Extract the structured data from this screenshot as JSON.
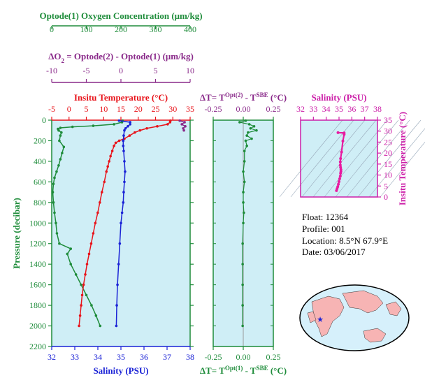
{
  "colors": {
    "oxygen": "#1e8c3a",
    "delta_o2": "#8a2a8a",
    "temperature": "#e8131a",
    "salinity": "#1a22d6",
    "delta_t": "#1e8c3a",
    "ts_axis": "#cc1fa8",
    "panel_fill": "#cfeef6",
    "ts_line": "#e81aa0"
  },
  "info": {
    "float": "Float:  12364",
    "profile": "Profile:  001",
    "location": "Location:  8.5°N  67.9°E",
    "date": "Date:  03/06/2017"
  },
  "chart_data": [
    {
      "type": "line",
      "panel": "profile",
      "ylabel": "Pressure (decibar)",
      "ylim": [
        2200,
        0
      ],
      "yticks": [
        0,
        200,
        400,
        600,
        800,
        1000,
        1200,
        1400,
        1600,
        1800,
        2000,
        2200
      ],
      "axes": {
        "oxygen": {
          "label": "Optode(1) Oxygen Concentration (μm/kg)",
          "range": [
            0,
            400
          ],
          "ticks": [
            0,
            100,
            200,
            300,
            400
          ]
        },
        "delta_o2": {
          "label_pre": "ΔO",
          "label_sub": "2",
          "label_post": " = Optode(2) - Optode(1)   (μm/kg)",
          "range": [
            -10,
            10
          ],
          "ticks": [
            -10,
            -5,
            0,
            5,
            10
          ]
        },
        "temperature": {
          "label": "Insitu Temperature (°C)",
          "range": [
            -5,
            35
          ],
          "ticks": [
            -5,
            0,
            5,
            10,
            15,
            20,
            25,
            30,
            35
          ]
        },
        "salinity": {
          "label": "Salinity (PSU)",
          "range": [
            32,
            38
          ],
          "ticks": [
            32,
            33,
            34,
            35,
            36,
            37,
            38
          ]
        }
      },
      "series": [
        {
          "key": "oxygen",
          "pressure": [
            5,
            20,
            40,
            55,
            65,
            75,
            85,
            100,
            120,
            150,
            200,
            260,
            320,
            380,
            440,
            500,
            560,
            620,
            700,
            800,
            900,
            1000,
            1100,
            1200,
            1250,
            1300,
            1400,
            1500,
            1600,
            1700,
            1800,
            1900,
            2000
          ],
          "values": [
            205,
            203,
            180,
            120,
            60,
            25,
            18,
            20,
            28,
            25,
            22,
            35,
            30,
            25,
            20,
            14,
            8,
            5,
            3,
            5,
            8,
            12,
            15,
            22,
            55,
            45,
            55,
            70,
            85,
            100,
            115,
            128,
            140
          ]
        },
        {
          "key": "temperature",
          "pressure": [
            5,
            20,
            40,
            60,
            80,
            100,
            120,
            150,
            180,
            200,
            220,
            250,
            300,
            350,
            400,
            450,
            500,
            600,
            700,
            800,
            900,
            1000,
            1100,
            1200,
            1300,
            1400,
            1500,
            1600,
            1700,
            1800,
            1900,
            2000
          ],
          "values": [
            29.3,
            29.2,
            28.5,
            25.5,
            22.5,
            20.5,
            19.0,
            17.5,
            16.0,
            14.5,
            13.5,
            13.0,
            12.5,
            12.0,
            11.6,
            11.2,
            10.8,
            10.2,
            9.5,
            8.9,
            8.3,
            7.6,
            7.0,
            6.4,
            5.8,
            5.2,
            4.7,
            4.2,
            3.8,
            3.5,
            3.2,
            2.9
          ]
        },
        {
          "key": "salinity",
          "pressure": [
            5,
            20,
            40,
            60,
            80,
            100,
            150,
            200,
            250,
            300,
            400,
            500,
            600,
            700,
            800,
            900,
            1000,
            1200,
            1400,
            1600,
            1800,
            2000
          ],
          "values": [
            34.92,
            35.4,
            35.4,
            35.3,
            35.2,
            35.15,
            35.12,
            35.1,
            35.1,
            35.12,
            35.15,
            35.18,
            35.15,
            35.12,
            35.1,
            35.05,
            35.0,
            34.95,
            34.9,
            34.85,
            34.82,
            34.8
          ]
        },
        {
          "key": "delta_o2",
          "pressure": [
            5,
            20,
            40,
            60,
            80,
            100
          ],
          "values": [
            8.5,
            9.2,
            8.8,
            9.3,
            9.0,
            9.1
          ]
        }
      ]
    },
    {
      "type": "scatter",
      "panel": "delta_t",
      "xlabel_top": {
        "pre": "ΔT= T",
        "sup": "Opt(2)",
        "mid": " - T",
        "sup2": "SBE",
        "post": " (°C)"
      },
      "xlabel_bottom": {
        "pre": "ΔT= T",
        "sup": "Opt(1)",
        "mid": " - T",
        "sup2": "SBE",
        "post": " (°C)"
      },
      "xlim": [
        -0.25,
        0.25
      ],
      "ylim": [
        2200,
        0
      ],
      "xticks": [
        -0.25,
        0.0,
        0.25
      ],
      "xtick_labels": [
        "-0.25",
        "0.00",
        "0.25"
      ],
      "pressure": [
        5,
        20,
        40,
        60,
        80,
        100,
        120,
        150,
        180,
        200,
        250,
        300,
        400,
        500,
        600,
        700,
        800,
        900,
        1000,
        1200,
        1400,
        1600,
        1800,
        2000
      ],
      "values": [
        0.02,
        -0.03,
        0.05,
        0.09,
        0.06,
        0.11,
        0.04,
        0.03,
        0.07,
        0.02,
        0.03,
        0.01,
        0.01,
        0.0,
        0.01,
        0.0,
        0.0,
        0.005,
        0.0,
        -0.005,
        -0.005,
        -0.005,
        -0.005,
        -0.005
      ]
    },
    {
      "type": "line",
      "panel": "ts",
      "xlabel": "Salinity (PSU)",
      "ylabel": "Insitu Temperature (°C)",
      "xlim": [
        32,
        38
      ],
      "ylim": [
        0,
        35
      ],
      "xticks": [
        32,
        33,
        34,
        35,
        36,
        37,
        38
      ],
      "yticks": [
        0,
        5,
        10,
        15,
        20,
        25,
        30,
        35
      ],
      "salinity": [
        34.8,
        34.85,
        34.9,
        34.95,
        35.0,
        35.05,
        35.1,
        35.12,
        35.15,
        35.15,
        35.12,
        35.1,
        35.1,
        35.12,
        35.2,
        35.3,
        35.4,
        35.4,
        34.92
      ],
      "temperature": [
        2.9,
        3.8,
        4.7,
        5.8,
        7.0,
        8.3,
        9.5,
        10.8,
        11.6,
        12.5,
        13.5,
        14.5,
        16.0,
        17.5,
        20.5,
        25.5,
        28.5,
        29.2,
        29.3
      ]
    }
  ]
}
